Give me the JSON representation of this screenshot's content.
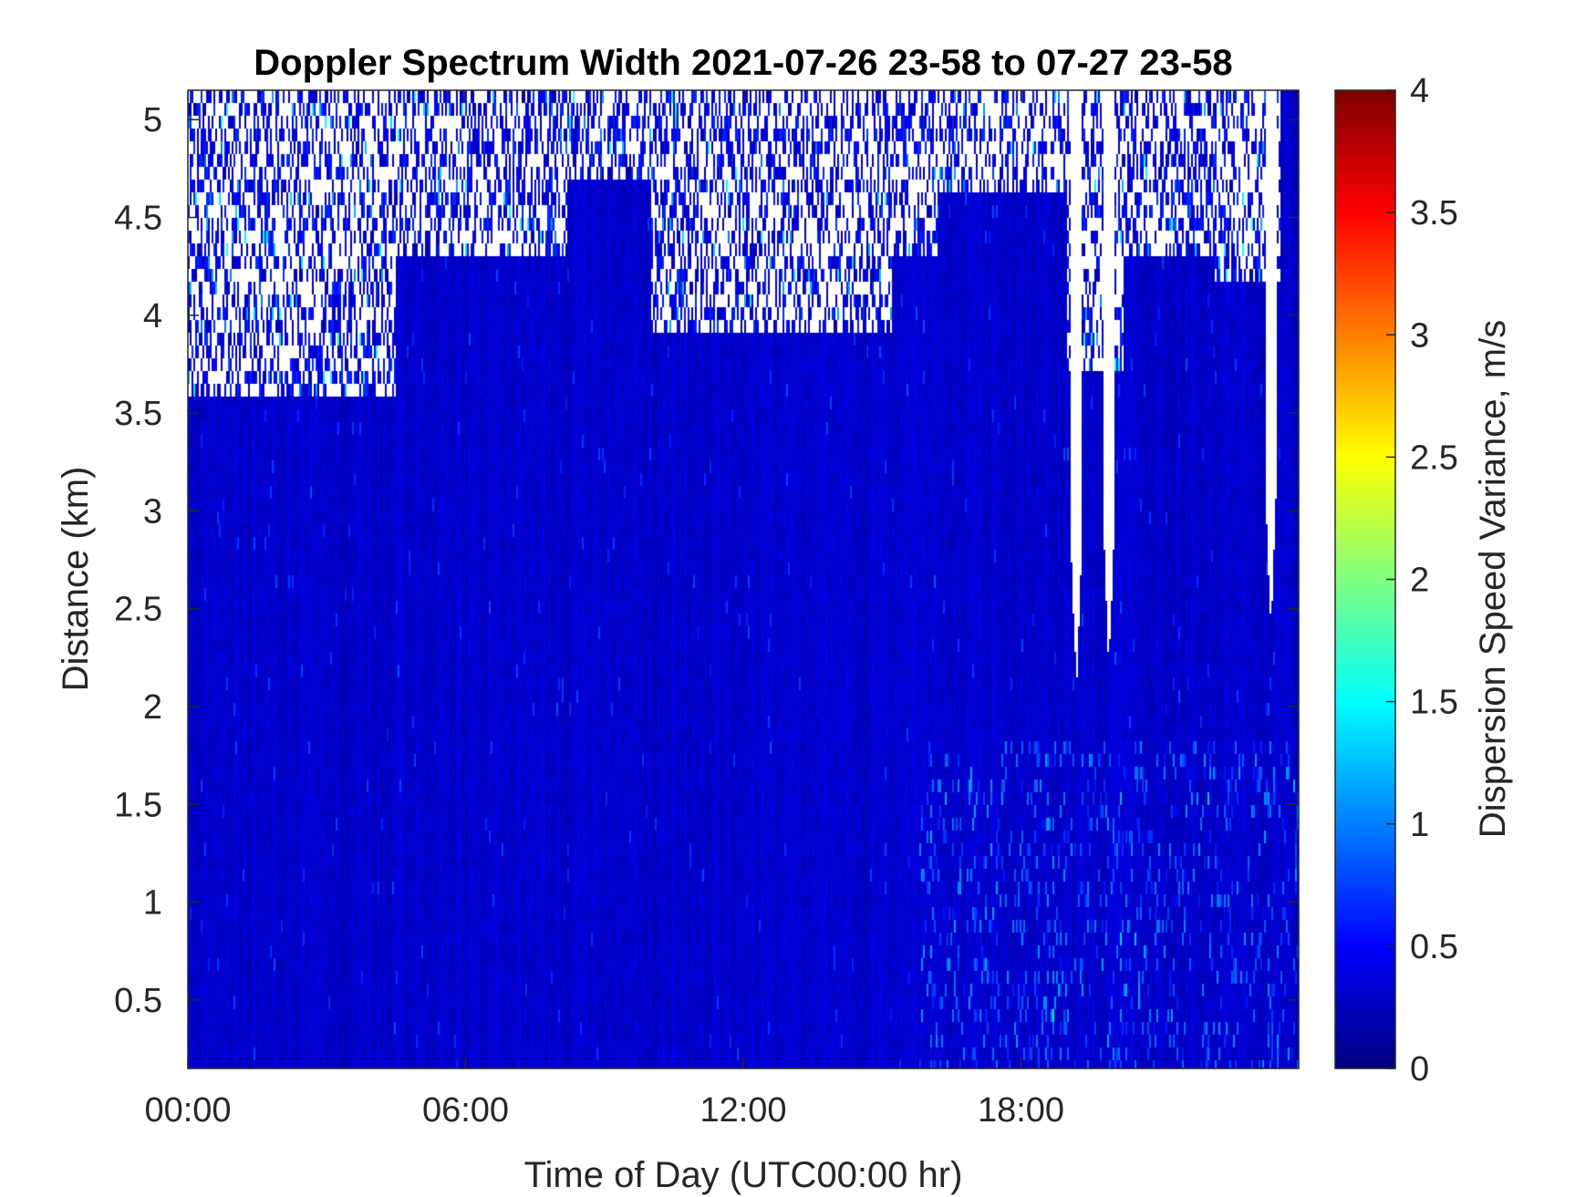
{
  "chart_data": {
    "type": "heatmap",
    "title": "Doppler Spectrum Width 2021-07-26 23-58 to 07-27 23-58",
    "xlabel": "Time of Day (UTC00:00 hr)",
    "ylabel": "Distance (km)",
    "x_ticks": [
      {
        "value": 0,
        "label": "00:00"
      },
      {
        "value": 6,
        "label": "06:00"
      },
      {
        "value": 12,
        "label": "12:00"
      },
      {
        "value": 18,
        "label": "18:00"
      }
    ],
    "y_ticks": [
      {
        "value": 0.5,
        "label": "0.5"
      },
      {
        "value": 1,
        "label": "1"
      },
      {
        "value": 1.5,
        "label": "1.5"
      },
      {
        "value": 2,
        "label": "2"
      },
      {
        "value": 2.5,
        "label": "2.5"
      },
      {
        "value": 3,
        "label": "3"
      },
      {
        "value": 3.5,
        "label": "3.5"
      },
      {
        "value": 4,
        "label": "4"
      },
      {
        "value": 4.5,
        "label": "4.5"
      },
      {
        "value": 5,
        "label": "5"
      }
    ],
    "xlim": [
      0,
      24
    ],
    "ylim": [
      0.15,
      5.15
    ],
    "colorbar": {
      "label": "Dispersion Speed Variance, m/s",
      "colormap": "jet",
      "clim": [
        0,
        4
      ],
      "ticks": [
        {
          "value": 0,
          "label": "0"
        },
        {
          "value": 0.5,
          "label": "0.5"
        },
        {
          "value": 1,
          "label": "1"
        },
        {
          "value": 1.5,
          "label": "1.5"
        },
        {
          "value": 2,
          "label": "2"
        },
        {
          "value": 2.5,
          "label": "2.5"
        },
        {
          "value": 3,
          "label": "3"
        },
        {
          "value": 3.5,
          "label": "3.5"
        },
        {
          "value": 4,
          "label": "4"
        }
      ]
    },
    "field_summary": {
      "typical_value": 0.3,
      "value_range_observed": [
        0.1,
        1.3
      ],
      "no_data_regions": [
        {
          "time_start": 0.0,
          "time_end": 4.5,
          "distance_min": 3.6
        },
        {
          "time_start": 4.5,
          "time_end": 8.2,
          "distance_min": 4.3
        },
        {
          "time_start": 8.2,
          "time_end": 10.0,
          "distance_min": 4.7
        },
        {
          "time_start": 10.0,
          "time_end": 15.2,
          "distance_min": 3.9
        },
        {
          "time_start": 15.2,
          "time_end": 16.2,
          "distance_min": 4.3
        },
        {
          "time_start": 16.2,
          "time_end": 19.0,
          "distance_min": 4.6
        },
        {
          "time_start": 19.0,
          "time_end": 20.2,
          "distance_min": 3.7
        },
        {
          "time_start": 20.2,
          "time_end": 22.2,
          "distance_min": 4.3
        },
        {
          "time_start": 22.2,
          "time_end": 23.6,
          "distance_min": 4.2
        }
      ],
      "no_data_spikes": [
        {
          "time": 19.2,
          "distance_min": 2.1
        },
        {
          "time": 19.9,
          "distance_min": 2.2
        },
        {
          "time": 23.4,
          "distance_min": 2.4
        }
      ]
    }
  }
}
